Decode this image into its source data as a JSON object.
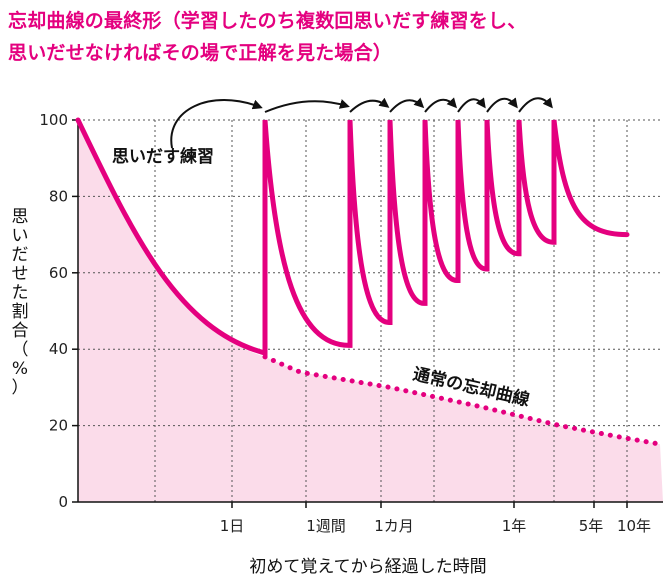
{
  "chart_data": {
    "type": "line",
    "title": "忘却曲線の最終形（学習したのち複数回思いだす練習をし、",
    "title_line2": "思いだせなければその場で正解を見た場合）",
    "xlabel": "初めて覚えてから経過した時間",
    "ylabel": "思いだせた割合（%）",
    "ylim": [
      0,
      100
    ],
    "yticks": [
      0,
      20,
      40,
      60,
      80,
      100
    ],
    "xtick_labels": [
      "1日",
      "1週間",
      "1カ月",
      "1年",
      "5年",
      "10年"
    ],
    "grid": true,
    "colors": {
      "accent": "#e4007f",
      "fill": "#fbdcea",
      "grid": "#555555"
    },
    "annotations": [
      {
        "text": "思いだす練習",
        "target": "retrieval-practice"
      },
      {
        "text": "通常の忘却曲線",
        "target": "normal-forgetting-curve"
      }
    ],
    "series": [
      {
        "name": "通常の忘却曲線",
        "style": "dotted",
        "values": [
          100,
          38,
          34,
          30,
          25,
          20,
          17,
          15
        ]
      },
      {
        "name": "思いだす練習",
        "style": "solid",
        "peaks": [
          100,
          100,
          100,
          100,
          100,
          100,
          100,
          100
        ],
        "troughs": [
          39,
          41,
          47,
          52,
          58,
          61,
          65,
          68
        ],
        "final_value": 70
      }
    ]
  }
}
